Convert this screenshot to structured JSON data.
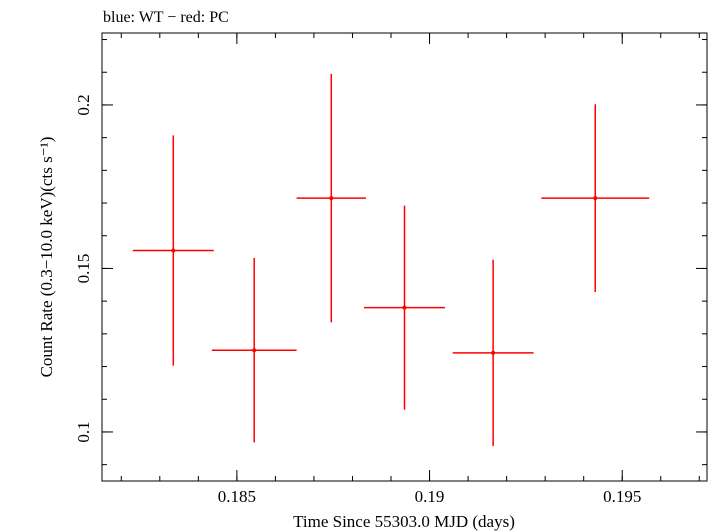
{
  "chart_data": {
    "type": "scatter",
    "title": "blue: WT − red: PC",
    "xlabel": "Time Since 55303.0 MJD (days)",
    "ylabel": "Count Rate (0.3−10.0 keV)(cts s⁻¹)",
    "xlim": [
      0.1815,
      0.1972
    ],
    "ylim": [
      0.085,
      0.222
    ],
    "x_ticks": [
      0.185,
      0.19,
      0.195
    ],
    "x_tick_labels": [
      "0.185",
      "0.19",
      "0.195"
    ],
    "y_ticks": [
      0.1,
      0.15,
      0.2
    ],
    "y_tick_labels": [
      "0.1",
      "0.15",
      "0.2"
    ],
    "grid": false,
    "series": [
      {
        "color": "#ff0000",
        "points": [
          {
            "x": 0.18335,
            "xerr": 0.00105,
            "y": 0.1555,
            "yerr": 0.0352
          },
          {
            "x": 0.18545,
            "xerr": 0.0011,
            "y": 0.125,
            "yerr": 0.0282
          },
          {
            "x": 0.18745,
            "xerr": 0.0009,
            "y": 0.1715,
            "yerr": 0.038
          },
          {
            "x": 0.18935,
            "xerr": 0.00105,
            "y": 0.138,
            "yerr": 0.0312
          },
          {
            "x": 0.19165,
            "xerr": 0.00105,
            "y": 0.1242,
            "yerr": 0.0285
          },
          {
            "x": 0.1943,
            "xerr": 0.0014,
            "y": 0.1715,
            "yerr": 0.0287
          }
        ]
      }
    ]
  }
}
